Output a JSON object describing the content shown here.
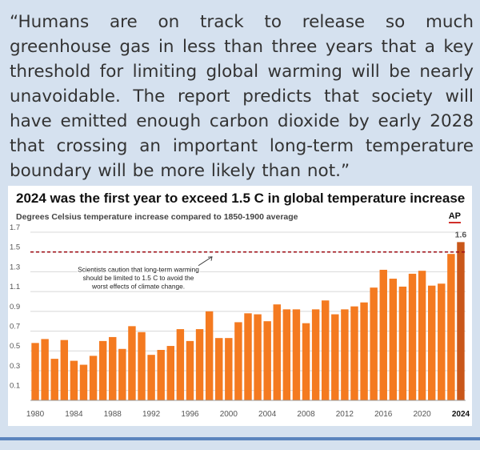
{
  "quote": {
    "text": "“Humans are on track to release so much greenhouse gas in less than three years that a key threshold for limiting global warming will be nearly unavoidable. The report predicts that society will have emitted enough carbon dioxide by early 2028 that crossing an important long-term temperature boundary will be more likely than not.”"
  },
  "logo": {
    "label": "AP"
  },
  "colors": {
    "bar": "#f47a20",
    "bar_highlight": "#c9571a",
    "threshold_line": "#a0141c",
    "grid": "#d8d8d8"
  },
  "chart_data": {
    "type": "bar",
    "title": "2024 was the first year to exceed 1.5 C in global temperature increase",
    "subtitle": "Degrees Celsius temperature increase compared to 1850-1900 average",
    "xlabel": "",
    "ylabel": "",
    "ylim": [
      0,
      1.7
    ],
    "yticks": [
      0.1,
      0.3,
      0.5,
      0.7,
      0.9,
      1.1,
      1.3,
      1.5,
      1.7
    ],
    "ytick_labels": [
      "0.1",
      "0.3",
      "0.5",
      "0.7",
      "0.9",
      "1.1",
      "1.3",
      "1.5",
      "1.7"
    ],
    "xtick_labels": [
      "1980",
      "1984",
      "1988",
      "1992",
      "1996",
      "2000",
      "2004",
      "2008",
      "2012",
      "2016",
      "2020",
      "2024"
    ],
    "years": [
      1980,
      1981,
      1982,
      1983,
      1984,
      1985,
      1986,
      1987,
      1988,
      1989,
      1990,
      1991,
      1992,
      1993,
      1994,
      1995,
      1996,
      1997,
      1998,
      1999,
      2000,
      2001,
      2002,
      2003,
      2004,
      2005,
      2006,
      2007,
      2008,
      2009,
      2010,
      2011,
      2012,
      2013,
      2014,
      2015,
      2016,
      2017,
      2018,
      2019,
      2020,
      2021,
      2022,
      2023,
      2024
    ],
    "values": [
      0.58,
      0.62,
      0.42,
      0.61,
      0.4,
      0.36,
      0.45,
      0.6,
      0.64,
      0.52,
      0.75,
      0.69,
      0.46,
      0.51,
      0.55,
      0.72,
      0.6,
      0.72,
      0.9,
      0.63,
      0.63,
      0.79,
      0.88,
      0.87,
      0.8,
      0.97,
      0.92,
      0.92,
      0.78,
      0.92,
      1.01,
      0.87,
      0.92,
      0.95,
      0.99,
      1.14,
      1.32,
      1.23,
      1.15,
      1.28,
      1.31,
      1.16,
      1.18,
      1.48,
      1.6
    ],
    "threshold": 1.5,
    "highlight_label": "1.6",
    "annotation": [
      "Scientists caution that long-term warming",
      "should be limited to 1.5 C to avoid the",
      "worst effects of climate change."
    ]
  }
}
